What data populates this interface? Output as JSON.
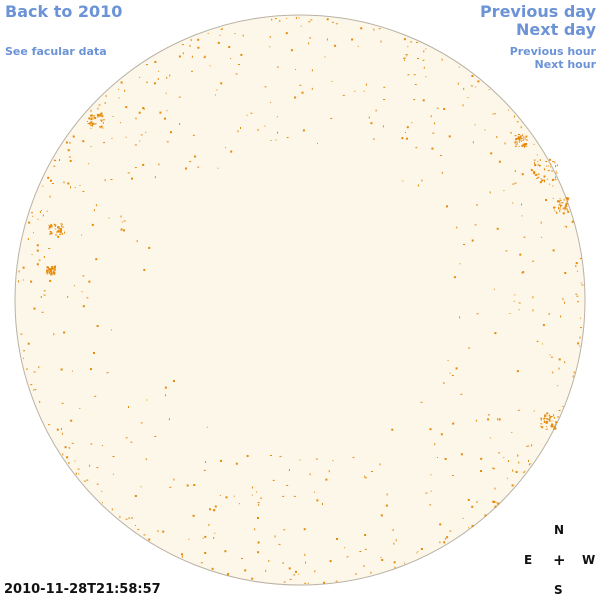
{
  "nav": {
    "back": "Back to 2010",
    "facular": "See facular data",
    "previous_day": "Previous day",
    "next_day": "Next day",
    "previous_hour": "Previous hour",
    "next_hour": "Next hour"
  },
  "timestamp": "2010-11-28T21:58:57",
  "compass": {
    "north": "N",
    "east": "E",
    "center": "+",
    "west": "W",
    "south": "S"
  },
  "colors": {
    "link": "#6b93d6",
    "disk_fill": "#fdf7ea",
    "disk_edge": "#b9b2a4",
    "faculae": "#e58a0b"
  }
}
